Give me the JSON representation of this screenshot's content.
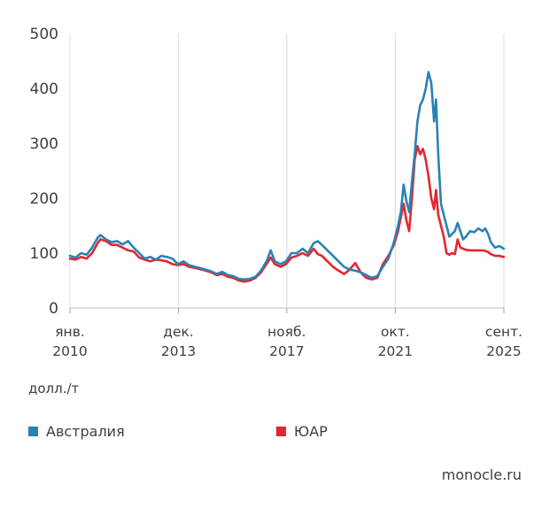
{
  "chart_data": {
    "type": "line",
    "unit_label": "долл./т",
    "ylim": [
      0,
      500
    ],
    "yticks": [
      0,
      100,
      200,
      300,
      400,
      500
    ],
    "grid": "vertical",
    "xlim": [
      2010.0,
      2025.67
    ],
    "xticks": [
      {
        "x": 2010.0,
        "line1": "янв.",
        "line2": "2010"
      },
      {
        "x": 2013.92,
        "line1": "дек.",
        "line2": "2013"
      },
      {
        "x": 2017.83,
        "line1": "нояб.",
        "line2": "2017"
      },
      {
        "x": 2021.75,
        "line1": "окт.",
        "line2": "2021"
      },
      {
        "x": 2025.67,
        "line1": "сент.",
        "line2": "2025"
      }
    ],
    "series": [
      {
        "name": "Австралия",
        "color": "#2a82b4",
        "points": [
          [
            2010.0,
            95
          ],
          [
            2010.2,
            92
          ],
          [
            2010.4,
            100
          ],
          [
            2010.6,
            97
          ],
          [
            2010.8,
            110
          ],
          [
            2011.0,
            128
          ],
          [
            2011.1,
            133
          ],
          [
            2011.3,
            125
          ],
          [
            2011.5,
            120
          ],
          [
            2011.7,
            122
          ],
          [
            2011.9,
            116
          ],
          [
            2012.1,
            122
          ],
          [
            2012.3,
            110
          ],
          [
            2012.5,
            100
          ],
          [
            2012.7,
            90
          ],
          [
            2012.9,
            93
          ],
          [
            2013.1,
            88
          ],
          [
            2013.3,
            95
          ],
          [
            2013.5,
            93
          ],
          [
            2013.7,
            90
          ],
          [
            2013.9,
            80
          ],
          [
            2014.1,
            85
          ],
          [
            2014.3,
            78
          ],
          [
            2014.6,
            74
          ],
          [
            2014.9,
            70
          ],
          [
            2015.1,
            67
          ],
          [
            2015.3,
            62
          ],
          [
            2015.5,
            66
          ],
          [
            2015.7,
            60
          ],
          [
            2015.9,
            58
          ],
          [
            2016.1,
            53
          ],
          [
            2016.3,
            52
          ],
          [
            2016.5,
            53
          ],
          [
            2016.7,
            57
          ],
          [
            2016.9,
            68
          ],
          [
            2017.1,
            85
          ],
          [
            2017.25,
            105
          ],
          [
            2017.4,
            85
          ],
          [
            2017.6,
            80
          ],
          [
            2017.8,
            85
          ],
          [
            2018.0,
            100
          ],
          [
            2018.2,
            100
          ],
          [
            2018.4,
            108
          ],
          [
            2018.6,
            100
          ],
          [
            2018.8,
            118
          ],
          [
            2018.95,
            122
          ],
          [
            2019.1,
            115
          ],
          [
            2019.3,
            105
          ],
          [
            2019.5,
            95
          ],
          [
            2019.7,
            85
          ],
          [
            2019.9,
            75
          ],
          [
            2020.1,
            70
          ],
          [
            2020.3,
            68
          ],
          [
            2020.5,
            65
          ],
          [
            2020.7,
            60
          ],
          [
            2020.9,
            55
          ],
          [
            2021.1,
            58
          ],
          [
            2021.3,
            75
          ],
          [
            2021.5,
            90
          ],
          [
            2021.7,
            120
          ],
          [
            2021.85,
            150
          ],
          [
            2021.95,
            175
          ],
          [
            2022.05,
            225
          ],
          [
            2022.15,
            195
          ],
          [
            2022.25,
            175
          ],
          [
            2022.35,
            230
          ],
          [
            2022.45,
            280
          ],
          [
            2022.55,
            340
          ],
          [
            2022.65,
            370
          ],
          [
            2022.75,
            380
          ],
          [
            2022.85,
            400
          ],
          [
            2022.95,
            430
          ],
          [
            2023.05,
            410
          ],
          [
            2023.15,
            340
          ],
          [
            2023.22,
            380
          ],
          [
            2023.3,
            280
          ],
          [
            2023.4,
            190
          ],
          [
            2023.5,
            170
          ],
          [
            2023.6,
            150
          ],
          [
            2023.7,
            130
          ],
          [
            2023.8,
            135
          ],
          [
            2023.9,
            140
          ],
          [
            2024.0,
            155
          ],
          [
            2024.1,
            140
          ],
          [
            2024.2,
            125
          ],
          [
            2024.3,
            130
          ],
          [
            2024.45,
            140
          ],
          [
            2024.6,
            138
          ],
          [
            2024.75,
            145
          ],
          [
            2024.9,
            140
          ],
          [
            2025.0,
            145
          ],
          [
            2025.1,
            135
          ],
          [
            2025.2,
            120
          ],
          [
            2025.35,
            110
          ],
          [
            2025.5,
            113
          ],
          [
            2025.67,
            108
          ]
        ]
      },
      {
        "name": "ЮАР",
        "color": "#e3262e",
        "points": [
          [
            2010.0,
            90
          ],
          [
            2010.2,
            88
          ],
          [
            2010.4,
            93
          ],
          [
            2010.6,
            90
          ],
          [
            2010.8,
            100
          ],
          [
            2011.0,
            118
          ],
          [
            2011.1,
            125
          ],
          [
            2011.3,
            122
          ],
          [
            2011.5,
            115
          ],
          [
            2011.7,
            115
          ],
          [
            2011.9,
            110
          ],
          [
            2012.1,
            105
          ],
          [
            2012.3,
            103
          ],
          [
            2012.5,
            92
          ],
          [
            2012.7,
            88
          ],
          [
            2012.9,
            85
          ],
          [
            2013.1,
            88
          ],
          [
            2013.3,
            87
          ],
          [
            2013.5,
            85
          ],
          [
            2013.7,
            80
          ],
          [
            2013.9,
            78
          ],
          [
            2014.1,
            80
          ],
          [
            2014.3,
            75
          ],
          [
            2014.6,
            72
          ],
          [
            2014.9,
            68
          ],
          [
            2015.1,
            65
          ],
          [
            2015.3,
            60
          ],
          [
            2015.5,
            62
          ],
          [
            2015.7,
            57
          ],
          [
            2015.9,
            55
          ],
          [
            2016.1,
            50
          ],
          [
            2016.3,
            48
          ],
          [
            2016.5,
            50
          ],
          [
            2016.7,
            55
          ],
          [
            2016.9,
            65
          ],
          [
            2017.1,
            80
          ],
          [
            2017.25,
            92
          ],
          [
            2017.4,
            80
          ],
          [
            2017.6,
            75
          ],
          [
            2017.8,
            80
          ],
          [
            2018.0,
            92
          ],
          [
            2018.2,
            95
          ],
          [
            2018.4,
            100
          ],
          [
            2018.6,
            95
          ],
          [
            2018.8,
            108
          ],
          [
            2018.95,
            98
          ],
          [
            2019.1,
            95
          ],
          [
            2019.3,
            85
          ],
          [
            2019.5,
            75
          ],
          [
            2019.7,
            68
          ],
          [
            2019.9,
            62
          ],
          [
            2020.1,
            70
          ],
          [
            2020.3,
            82
          ],
          [
            2020.5,
            65
          ],
          [
            2020.7,
            55
          ],
          [
            2020.9,
            52
          ],
          [
            2021.1,
            55
          ],
          [
            2021.3,
            80
          ],
          [
            2021.5,
            95
          ],
          [
            2021.7,
            115
          ],
          [
            2021.85,
            140
          ],
          [
            2021.95,
            165
          ],
          [
            2022.05,
            190
          ],
          [
            2022.15,
            160
          ],
          [
            2022.25,
            140
          ],
          [
            2022.35,
            200
          ],
          [
            2022.45,
            270
          ],
          [
            2022.55,
            295
          ],
          [
            2022.65,
            280
          ],
          [
            2022.75,
            290
          ],
          [
            2022.85,
            270
          ],
          [
            2022.95,
            240
          ],
          [
            2023.05,
            200
          ],
          [
            2023.15,
            180
          ],
          [
            2023.22,
            215
          ],
          [
            2023.3,
            170
          ],
          [
            2023.4,
            150
          ],
          [
            2023.5,
            130
          ],
          [
            2023.6,
            100
          ],
          [
            2023.7,
            97
          ],
          [
            2023.8,
            100
          ],
          [
            2023.9,
            98
          ],
          [
            2024.0,
            125
          ],
          [
            2024.1,
            110
          ],
          [
            2024.2,
            108
          ],
          [
            2024.3,
            106
          ],
          [
            2024.45,
            105
          ],
          [
            2024.6,
            105
          ],
          [
            2024.75,
            105
          ],
          [
            2024.9,
            105
          ],
          [
            2025.0,
            104
          ],
          [
            2025.1,
            102
          ],
          [
            2025.2,
            98
          ],
          [
            2025.35,
            95
          ],
          [
            2025.5,
            95
          ],
          [
            2025.67,
            93
          ]
        ]
      }
    ]
  },
  "legend": [
    {
      "label": "Австралия",
      "color": "#2a82b4"
    },
    {
      "label": "ЮАР",
      "color": "#e3262e"
    }
  ],
  "source": "monocle.ru"
}
